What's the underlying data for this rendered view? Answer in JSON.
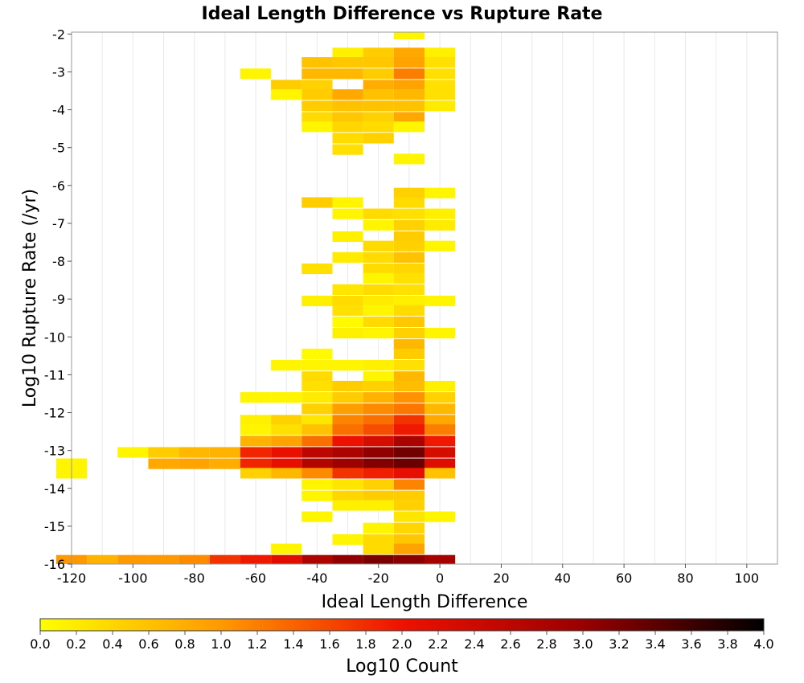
{
  "chart_data": {
    "type": "heatmap",
    "title": "Ideal Length Difference vs Rupture Rate",
    "xlabel": "Ideal Length Difference",
    "ylabel": "Log10 Rupture Rate (/yr)",
    "xlim": [
      -120,
      110
    ],
    "ylim": [
      -16,
      -1.95
    ],
    "x_ticks": [
      "-120",
      "-100",
      "-80",
      "-60",
      "-40",
      "-20",
      "0",
      "20",
      "40",
      "60",
      "80",
      "100"
    ],
    "y_ticks": [
      "-2",
      "-3",
      "-4",
      "-5",
      "-6",
      "-7",
      "-8",
      "-9",
      "-10",
      "-11",
      "-12",
      "-13",
      "-14",
      "-15",
      "-16"
    ],
    "grid": true,
    "bin_width_x": 10,
    "bin_height_y": 0.28,
    "colorbar": {
      "label": "Log10 Count",
      "range": [
        0,
        4
      ],
      "ticks": [
        "0.0",
        "0.2",
        "0.4",
        "0.6",
        "0.8",
        "1.0",
        "1.2",
        "1.4",
        "1.6",
        "1.8",
        "2.0",
        "2.2",
        "2.4",
        "2.6",
        "2.8",
        "3.0",
        "3.2",
        "3.4",
        "3.6",
        "3.8",
        "4.0"
      ],
      "colors": [
        "#ffff00",
        "#ff9900",
        "#ee1100",
        "#990000",
        "#000000"
      ]
    },
    "cells": [
      {
        "x": -10,
        "y": -2.0,
        "v": 0.1
      },
      {
        "x": -30,
        "y": -2.5,
        "v": 0.15
      },
      {
        "x": -20,
        "y": -2.5,
        "v": 0.5
      },
      {
        "x": -10,
        "y": -2.5,
        "v": 0.85
      },
      {
        "x": 0,
        "y": -2.5,
        "v": 0.15
      },
      {
        "x": -40,
        "y": -2.75,
        "v": 0.6
      },
      {
        "x": -30,
        "y": -2.75,
        "v": 0.55
      },
      {
        "x": -20,
        "y": -2.75,
        "v": 0.55
      },
      {
        "x": -10,
        "y": -2.75,
        "v": 0.9
      },
      {
        "x": 0,
        "y": -2.75,
        "v": 0.3
      },
      {
        "x": -60,
        "y": -3.05,
        "v": 0.1
      },
      {
        "x": -40,
        "y": -3.05,
        "v": 0.7
      },
      {
        "x": -30,
        "y": -3.05,
        "v": 0.7
      },
      {
        "x": -20,
        "y": -3.05,
        "v": 0.5
      },
      {
        "x": -10,
        "y": -3.05,
        "v": 1.2
      },
      {
        "x": 0,
        "y": -3.05,
        "v": 0.3
      },
      {
        "x": -50,
        "y": -3.35,
        "v": 0.5
      },
      {
        "x": -40,
        "y": -3.35,
        "v": 0.45
      },
      {
        "x": -20,
        "y": -3.35,
        "v": 0.8
      },
      {
        "x": -10,
        "y": -3.35,
        "v": 0.9
      },
      {
        "x": 0,
        "y": -3.35,
        "v": 0.3
      },
      {
        "x": -50,
        "y": -3.6,
        "v": 0.1
      },
      {
        "x": -40,
        "y": -3.6,
        "v": 0.5
      },
      {
        "x": -30,
        "y": -3.6,
        "v": 0.85
      },
      {
        "x": -20,
        "y": -3.6,
        "v": 0.6
      },
      {
        "x": -10,
        "y": -3.6,
        "v": 0.7
      },
      {
        "x": 0,
        "y": -3.6,
        "v": 0.3
      },
      {
        "x": -40,
        "y": -3.9,
        "v": 0.5
      },
      {
        "x": -30,
        "y": -3.9,
        "v": 0.6
      },
      {
        "x": -20,
        "y": -3.9,
        "v": 0.6
      },
      {
        "x": -10,
        "y": -3.9,
        "v": 0.6
      },
      {
        "x": 0,
        "y": -3.9,
        "v": 0.2
      },
      {
        "x": -40,
        "y": -4.2,
        "v": 0.35
      },
      {
        "x": -30,
        "y": -4.2,
        "v": 0.55
      },
      {
        "x": -20,
        "y": -4.2,
        "v": 0.45
      },
      {
        "x": -10,
        "y": -4.2,
        "v": 0.85
      },
      {
        "x": -40,
        "y": -4.45,
        "v": 0.1
      },
      {
        "x": -30,
        "y": -4.45,
        "v": 0.4
      },
      {
        "x": -20,
        "y": -4.45,
        "v": 0.35
      },
      {
        "x": -10,
        "y": -4.45,
        "v": 0.1
      },
      {
        "x": -30,
        "y": -4.75,
        "v": 0.35
      },
      {
        "x": -20,
        "y": -4.75,
        "v": 0.45
      },
      {
        "x": -30,
        "y": -5.05,
        "v": 0.3
      },
      {
        "x": -10,
        "y": -5.3,
        "v": 0.1
      },
      {
        "x": -10,
        "y": -6.2,
        "v": 0.45
      },
      {
        "x": 0,
        "y": -6.2,
        "v": 0.1
      },
      {
        "x": -40,
        "y": -6.45,
        "v": 0.5
      },
      {
        "x": -30,
        "y": -6.45,
        "v": 0.1
      },
      {
        "x": -10,
        "y": -6.45,
        "v": 0.35
      },
      {
        "x": -30,
        "y": -6.75,
        "v": 0.1
      },
      {
        "x": -20,
        "y": -6.75,
        "v": 0.35
      },
      {
        "x": -10,
        "y": -6.75,
        "v": 0.3
      },
      {
        "x": 0,
        "y": -6.75,
        "v": 0.15
      },
      {
        "x": -20,
        "y": -7.05,
        "v": 0.1
      },
      {
        "x": -10,
        "y": -7.05,
        "v": 0.45
      },
      {
        "x": 0,
        "y": -7.05,
        "v": 0.2
      },
      {
        "x": -30,
        "y": -7.35,
        "v": 0.15
      },
      {
        "x": -10,
        "y": -7.35,
        "v": 0.5
      },
      {
        "x": -20,
        "y": -7.6,
        "v": 0.35
      },
      {
        "x": -10,
        "y": -7.6,
        "v": 0.45
      },
      {
        "x": 0,
        "y": -7.6,
        "v": 0.1
      },
      {
        "x": -30,
        "y": -7.9,
        "v": 0.2
      },
      {
        "x": -20,
        "y": -7.9,
        "v": 0.35
      },
      {
        "x": -10,
        "y": -7.9,
        "v": 0.6
      },
      {
        "x": -40,
        "y": -8.2,
        "v": 0.3
      },
      {
        "x": -20,
        "y": -8.2,
        "v": 0.35
      },
      {
        "x": -10,
        "y": -8.2,
        "v": 0.4
      },
      {
        "x": -20,
        "y": -8.45,
        "v": 0.1
      },
      {
        "x": -10,
        "y": -8.45,
        "v": 0.3
      },
      {
        "x": -30,
        "y": -8.75,
        "v": 0.25
      },
      {
        "x": -20,
        "y": -8.75,
        "v": 0.35
      },
      {
        "x": -10,
        "y": -8.75,
        "v": 0.3
      },
      {
        "x": -40,
        "y": -9.05,
        "v": 0.15
      },
      {
        "x": -30,
        "y": -9.05,
        "v": 0.35
      },
      {
        "x": -20,
        "y": -9.05,
        "v": 0.2
      },
      {
        "x": -10,
        "y": -9.05,
        "v": 0.15
      },
      {
        "x": 0,
        "y": -9.05,
        "v": 0.1
      },
      {
        "x": -30,
        "y": -9.3,
        "v": 0.3
      },
      {
        "x": -20,
        "y": -9.3,
        "v": 0.1
      },
      {
        "x": -10,
        "y": -9.3,
        "v": 0.35
      },
      {
        "x": -30,
        "y": -9.6,
        "v": 0.05
      },
      {
        "x": -20,
        "y": -9.6,
        "v": 0.35
      },
      {
        "x": -10,
        "y": -9.6,
        "v": 0.55
      },
      {
        "x": -30,
        "y": -9.9,
        "v": 0.15
      },
      {
        "x": -20,
        "y": -9.9,
        "v": 0.1
      },
      {
        "x": -10,
        "y": -9.9,
        "v": 0.45
      },
      {
        "x": 0,
        "y": -9.9,
        "v": 0.1
      },
      {
        "x": -10,
        "y": -10.2,
        "v": 0.7
      },
      {
        "x": -40,
        "y": -10.45,
        "v": 0.05
      },
      {
        "x": -10,
        "y": -10.45,
        "v": 0.5
      },
      {
        "x": -50,
        "y": -10.75,
        "v": 0.1
      },
      {
        "x": -40,
        "y": -10.75,
        "v": 0.1
      },
      {
        "x": -30,
        "y": -10.75,
        "v": 0.1
      },
      {
        "x": -20,
        "y": -10.75,
        "v": 0.15
      },
      {
        "x": -10,
        "y": -10.75,
        "v": 0.3
      },
      {
        "x": -40,
        "y": -11.05,
        "v": 0.35
      },
      {
        "x": -20,
        "y": -11.05,
        "v": 0.1
      },
      {
        "x": -10,
        "y": -11.05,
        "v": 0.7
      },
      {
        "x": -40,
        "y": -11.3,
        "v": 0.3
      },
      {
        "x": -30,
        "y": -11.3,
        "v": 0.5
      },
      {
        "x": -20,
        "y": -11.3,
        "v": 0.45
      },
      {
        "x": -10,
        "y": -11.3,
        "v": 0.65
      },
      {
        "x": 0,
        "y": -11.3,
        "v": 0.15
      },
      {
        "x": -60,
        "y": -11.6,
        "v": 0.1
      },
      {
        "x": -50,
        "y": -11.6,
        "v": 0.1
      },
      {
        "x": -40,
        "y": -11.6,
        "v": 0.2
      },
      {
        "x": -30,
        "y": -11.6,
        "v": 0.5
      },
      {
        "x": -20,
        "y": -11.6,
        "v": 0.75
      },
      {
        "x": -10,
        "y": -11.6,
        "v": 1.05
      },
      {
        "x": 0,
        "y": -11.6,
        "v": 0.45
      },
      {
        "x": -40,
        "y": -11.9,
        "v": 0.45
      },
      {
        "x": -30,
        "y": -11.9,
        "v": 0.95
      },
      {
        "x": -20,
        "y": -11.9,
        "v": 1.1
      },
      {
        "x": -10,
        "y": -11.9,
        "v": 1.25
      },
      {
        "x": 0,
        "y": -11.9,
        "v": 0.7
      },
      {
        "x": -60,
        "y": -12.2,
        "v": 0.15
      },
      {
        "x": -50,
        "y": -12.2,
        "v": 0.45
      },
      {
        "x": -40,
        "y": -12.2,
        "v": 0.25
      },
      {
        "x": -30,
        "y": -12.2,
        "v": 1.15
      },
      {
        "x": -20,
        "y": -12.2,
        "v": 1.3
      },
      {
        "x": -10,
        "y": -12.2,
        "v": 1.75
      },
      {
        "x": 0,
        "y": -12.2,
        "v": 0.85
      },
      {
        "x": -60,
        "y": -12.45,
        "v": 0.1
      },
      {
        "x": -50,
        "y": -12.45,
        "v": 0.3
      },
      {
        "x": -40,
        "y": -12.45,
        "v": 0.6
      },
      {
        "x": -30,
        "y": -12.45,
        "v": 1.3
      },
      {
        "x": -20,
        "y": -12.45,
        "v": 1.55
      },
      {
        "x": -10,
        "y": -12.45,
        "v": 1.95
      },
      {
        "x": 0,
        "y": -12.45,
        "v": 1.2
      },
      {
        "x": -60,
        "y": -12.75,
        "v": 0.75
      },
      {
        "x": -50,
        "y": -12.75,
        "v": 0.9
      },
      {
        "x": -40,
        "y": -12.75,
        "v": 1.3
      },
      {
        "x": -30,
        "y": -12.75,
        "v": 2.0
      },
      {
        "x": -20,
        "y": -12.75,
        "v": 2.3
      },
      {
        "x": -10,
        "y": -12.75,
        "v": 2.8
      },
      {
        "x": 0,
        "y": -12.75,
        "v": 1.95
      },
      {
        "x": -100,
        "y": -13.05,
        "v": 0.1
      },
      {
        "x": -90,
        "y": -13.05,
        "v": 0.5
      },
      {
        "x": -80,
        "y": -13.05,
        "v": 0.7
      },
      {
        "x": -70,
        "y": -13.05,
        "v": 0.75
      },
      {
        "x": -60,
        "y": -13.05,
        "v": 1.85
      },
      {
        "x": -50,
        "y": -13.05,
        "v": 2.05
      },
      {
        "x": -40,
        "y": -13.05,
        "v": 2.6
      },
      {
        "x": -30,
        "y": -13.05,
        "v": 2.8
      },
      {
        "x": -20,
        "y": -13.05,
        "v": 3.05
      },
      {
        "x": -10,
        "y": -13.05,
        "v": 3.25
      },
      {
        "x": 0,
        "y": -13.05,
        "v": 2.3
      },
      {
        "x": -120,
        "y": -13.35,
        "v": 0.1
      },
      {
        "x": -90,
        "y": -13.35,
        "v": 0.85
      },
      {
        "x": -80,
        "y": -13.35,
        "v": 0.9
      },
      {
        "x": -70,
        "y": -13.35,
        "v": 0.8
      },
      {
        "x": -60,
        "y": -13.35,
        "v": 1.85
      },
      {
        "x": -50,
        "y": -13.35,
        "v": 2.1
      },
      {
        "x": -40,
        "y": -13.35,
        "v": 2.7
      },
      {
        "x": -30,
        "y": -13.35,
        "v": 2.95
      },
      {
        "x": -20,
        "y": -13.35,
        "v": 3.15
      },
      {
        "x": -10,
        "y": -13.35,
        "v": 3.3
      },
      {
        "x": 0,
        "y": -13.35,
        "v": 2.2
      },
      {
        "x": -120,
        "y": -13.6,
        "v": 0.1
      },
      {
        "x": -60,
        "y": -13.6,
        "v": 0.45
      },
      {
        "x": -50,
        "y": -13.6,
        "v": 0.7
      },
      {
        "x": -40,
        "y": -13.6,
        "v": 1.1
      },
      {
        "x": -30,
        "y": -13.6,
        "v": 1.75
      },
      {
        "x": -20,
        "y": -13.6,
        "v": 1.9
      },
      {
        "x": -10,
        "y": -13.6,
        "v": 2.1
      },
      {
        "x": 0,
        "y": -13.6,
        "v": 0.6
      },
      {
        "x": -40,
        "y": -13.9,
        "v": 0.1
      },
      {
        "x": -30,
        "y": -13.9,
        "v": 0.25
      },
      {
        "x": -20,
        "y": -13.9,
        "v": 0.45
      },
      {
        "x": -10,
        "y": -13.9,
        "v": 1.15
      },
      {
        "x": -40,
        "y": -14.2,
        "v": 0.1
      },
      {
        "x": -30,
        "y": -14.2,
        "v": 0.4
      },
      {
        "x": -20,
        "y": -14.2,
        "v": 0.5
      },
      {
        "x": -10,
        "y": -14.2,
        "v": 0.5
      },
      {
        "x": -30,
        "y": -14.45,
        "v": 0.15
      },
      {
        "x": -20,
        "y": -14.45,
        "v": 0.15
      },
      {
        "x": -10,
        "y": -14.45,
        "v": 0.45
      },
      {
        "x": -40,
        "y": -14.75,
        "v": 0.1
      },
      {
        "x": -10,
        "y": -14.75,
        "v": 0.25
      },
      {
        "x": 0,
        "y": -14.75,
        "v": 0.1
      },
      {
        "x": -20,
        "y": -15.05,
        "v": 0.1
      },
      {
        "x": -10,
        "y": -15.05,
        "v": 0.4
      },
      {
        "x": -30,
        "y": -15.35,
        "v": 0.1
      },
      {
        "x": -20,
        "y": -15.35,
        "v": 0.35
      },
      {
        "x": -10,
        "y": -15.35,
        "v": 0.55
      },
      {
        "x": -50,
        "y": -15.6,
        "v": 0.1
      },
      {
        "x": -20,
        "y": -15.6,
        "v": 0.35
      },
      {
        "x": -10,
        "y": -15.6,
        "v": 0.9
      },
      {
        "x": -120,
        "y": -15.9,
        "v": 1.0
      },
      {
        "x": -110,
        "y": -15.9,
        "v": 0.75
      },
      {
        "x": -100,
        "y": -15.9,
        "v": 1.0
      },
      {
        "x": -90,
        "y": -15.9,
        "v": 1.0
      },
      {
        "x": -80,
        "y": -15.9,
        "v": 1.1
      },
      {
        "x": -70,
        "y": -15.9,
        "v": 1.75
      },
      {
        "x": -60,
        "y": -15.9,
        "v": 1.95
      },
      {
        "x": -50,
        "y": -15.9,
        "v": 2.15
      },
      {
        "x": -40,
        "y": -15.9,
        "v": 2.75
      },
      {
        "x": -30,
        "y": -15.9,
        "v": 3.05
      },
      {
        "x": -20,
        "y": -15.9,
        "v": 3.2
      },
      {
        "x": -10,
        "y": -15.9,
        "v": 3.1
      },
      {
        "x": 0,
        "y": -15.9,
        "v": 2.85
      }
    ]
  }
}
